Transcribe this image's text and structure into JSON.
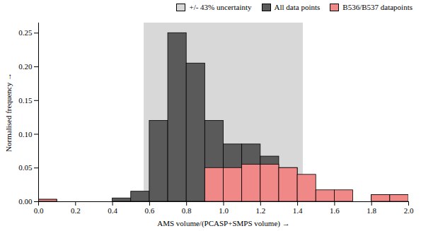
{
  "chart_data": {
    "type": "histogram",
    "xlabel": "AMS volume/(PCASP+SMPS volume)",
    "ylabel": "Normalised frequency",
    "bins": [
      0.0,
      0.1,
      0.2,
      0.3,
      0.4,
      0.5,
      0.6,
      0.7,
      0.8,
      0.9,
      1.0,
      1.1,
      1.2,
      1.3,
      1.4,
      1.5,
      1.6,
      1.7,
      1.8,
      1.9,
      2.0
    ],
    "series": [
      {
        "name": "All data points",
        "color": "#5a5a5a",
        "values": [
          0.003,
          0.0,
          0.0,
          0.0,
          0.005,
          0.015,
          0.12,
          0.25,
          0.205,
          0.12,
          0.085,
          0.085,
          0.067,
          0.05,
          0.017,
          0.0,
          0.0,
          0.0,
          0.01,
          0.01
        ]
      },
      {
        "name": "B536/B537 datapoints",
        "color": "#f08888",
        "values": [
          0.003,
          0.0,
          0.0,
          0.0,
          0.0,
          0.0,
          0.0,
          0.0,
          0.0,
          0.05,
          0.05,
          0.055,
          0.055,
          0.05,
          0.04,
          0.017,
          0.017,
          0.0,
          0.01,
          0.01
        ]
      }
    ],
    "shaded_span": {
      "name": "+/-  43% uncertainty",
      "color": "#d8d8d8",
      "x": [
        0.57,
        1.43
      ]
    },
    "xlim": [
      0.0,
      2.0
    ],
    "ylim": [
      0.0,
      0.265
    ],
    "xticks": [
      {
        "value": 0.0,
        "label": "0.0"
      },
      0.2,
      0.4,
      0.6,
      0.8,
      {
        "value": 1.0,
        "label": "1.0"
      },
      1.2,
      1.4,
      1.6,
      1.8,
      {
        "value": 2.0,
        "label": "2.0"
      }
    ],
    "yticks": [
      {
        "value": 0.0,
        "label": "0.00"
      },
      0.05,
      {
        "value": 0.1,
        "label": "0.10"
      },
      0.15,
      {
        "value": 0.2,
        "label": "0.20"
      },
      0.25
    ],
    "legend": "upper right",
    "grid": false
  }
}
